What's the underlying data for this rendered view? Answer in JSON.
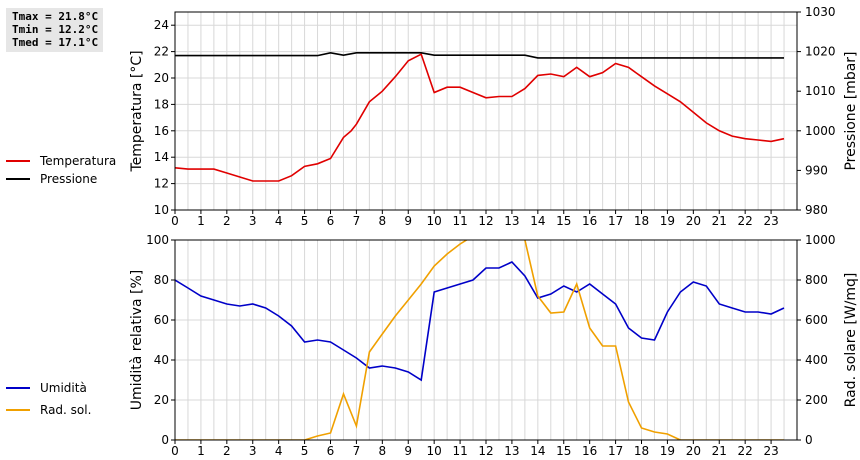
{
  "stats": {
    "tmax": "Tmax = 21.8°C",
    "tmin": "Tmin = 12.2°C",
    "tmed": "Tmed = 17.1°C"
  },
  "colors": {
    "temperature": "#e00000",
    "pressure": "#000000",
    "humidity": "#0000c8",
    "solar": "#f0a000",
    "grid": "#d8d8d8"
  },
  "chart_data": [
    {
      "type": "line",
      "x_ticks": [
        "0",
        "1",
        "2",
        "3",
        "4",
        "5",
        "6",
        "7",
        "8",
        "9",
        "10",
        "11",
        "12",
        "13",
        "14",
        "15",
        "16",
        "17",
        "18",
        "19",
        "20",
        "21",
        "22",
        "23"
      ],
      "xlim": [
        0,
        24
      ],
      "ylabel_left": "Temperatura [°C]",
      "ylabel_right": "Pressione [mbar]",
      "ylim_left": [
        10,
        25
      ],
      "ylim_right": [
        980,
        1030
      ],
      "yticks_left": [
        "10",
        "12",
        "14",
        "16",
        "18",
        "20",
        "22",
        "24"
      ],
      "yticks_right": [
        "980",
        "990",
        "1000",
        "1010",
        "1020",
        "1030"
      ],
      "grid": true,
      "legend_placement": "left",
      "series": [
        {
          "name": "Temperatura",
          "axis": "left",
          "x": [
            0,
            0.5,
            1,
            1.5,
            2,
            2.5,
            3,
            3.5,
            4,
            4.5,
            5,
            5.5,
            6,
            6.5,
            6.8,
            7,
            7.5,
            8,
            8.5,
            9,
            9.5,
            10,
            10.5,
            11,
            11.5,
            12,
            12.5,
            13,
            13.5,
            14,
            14.5,
            15,
            15.5,
            16,
            16.5,
            17,
            17.5,
            18,
            18.5,
            19,
            19.5,
            20,
            20.5,
            21,
            21.5,
            22,
            22.5,
            23,
            23.5
          ],
          "values": [
            13.2,
            13.1,
            13.1,
            13.1,
            12.8,
            12.5,
            12.2,
            12.2,
            12.2,
            12.6,
            13.3,
            13.5,
            13.9,
            15.5,
            16.0,
            16.5,
            18.2,
            19.0,
            20.1,
            21.3,
            21.8,
            18.9,
            19.3,
            19.3,
            18.9,
            18.5,
            18.6,
            18.6,
            19.2,
            20.2,
            20.3,
            20.1,
            20.8,
            20.1,
            20.4,
            21.1,
            20.8,
            20.1,
            19.4,
            18.8,
            18.2,
            17.4,
            16.6,
            16.0,
            15.6,
            15.4,
            15.3,
            15.2,
            15.4
          ]
        },
        {
          "name": "Pressione",
          "axis": "right",
          "x": [
            0,
            5.5,
            6,
            6.5,
            7,
            9.5,
            10,
            13.5,
            14,
            23.5
          ],
          "values": [
            1019,
            1019,
            1019.7,
            1019.1,
            1019.7,
            1019.7,
            1019.1,
            1019.1,
            1018.4,
            1018.4
          ]
        }
      ]
    },
    {
      "type": "line",
      "x_ticks": [
        "0",
        "1",
        "2",
        "3",
        "4",
        "5",
        "6",
        "7",
        "8",
        "9",
        "10",
        "11",
        "12",
        "13",
        "14",
        "15",
        "16",
        "17",
        "18",
        "19",
        "20",
        "21",
        "22",
        "23"
      ],
      "xlim": [
        0,
        24
      ],
      "ylabel_left": "Umidità relativa [%]",
      "ylabel_right": "Rad. solare [W/mq]",
      "ylim_left": [
        0,
        100
      ],
      "ylim_right": [
        0,
        1000
      ],
      "yticks_left": [
        "0",
        "20",
        "40",
        "60",
        "80",
        "100"
      ],
      "yticks_right": [
        "0",
        "200",
        "400",
        "600",
        "800",
        "1000"
      ],
      "grid": true,
      "legend_placement": "left",
      "series": [
        {
          "name": "Umidità",
          "axis": "left",
          "x": [
            0,
            0.5,
            1,
            1.5,
            2,
            2.5,
            3,
            3.5,
            4,
            4.5,
            5,
            5.5,
            6,
            6.5,
            7,
            7.5,
            8,
            8.5,
            9,
            9.5,
            10,
            10.5,
            11,
            11.5,
            12,
            12.5,
            13,
            13.5,
            14,
            14.5,
            15,
            15.5,
            16,
            16.5,
            17,
            17.5,
            18,
            18.5,
            19,
            19.5,
            20,
            20.5,
            21,
            21.5,
            22,
            22.5,
            23,
            23.5
          ],
          "values": [
            80,
            76,
            72,
            70,
            68,
            67,
            68,
            66,
            62,
            57,
            49,
            50,
            49,
            45,
            41,
            36,
            37,
            36,
            34,
            30,
            74,
            76,
            78,
            80,
            86,
            86,
            89,
            82,
            71,
            73,
            77,
            74,
            78,
            73,
            68,
            56,
            51,
            50,
            64,
            74,
            79,
            77,
            68,
            66,
            64,
            64,
            63,
            66
          ]
        },
        {
          "name": "Rad. sol.",
          "axis": "right",
          "x": [
            0,
            5,
            5.5,
            6,
            6.5,
            7,
            7.5,
            8,
            8.5,
            9,
            9.5,
            10,
            10.5,
            11,
            11.5,
            12,
            12.5,
            13,
            13.5,
            14,
            14.5,
            15,
            15.5,
            16,
            16.5,
            17,
            17.5,
            18,
            18.5,
            19,
            19.5,
            20,
            23.5
          ],
          "values": [
            0,
            0,
            20,
            35,
            230,
            70,
            440,
            530,
            620,
            700,
            780,
            870,
            930,
            980,
            1020,
            1030,
            1060,
            1060,
            1000,
            720,
            635,
            640,
            780,
            560,
            470,
            470,
            190,
            60,
            40,
            30,
            0,
            0,
            0
          ]
        }
      ]
    }
  ]
}
